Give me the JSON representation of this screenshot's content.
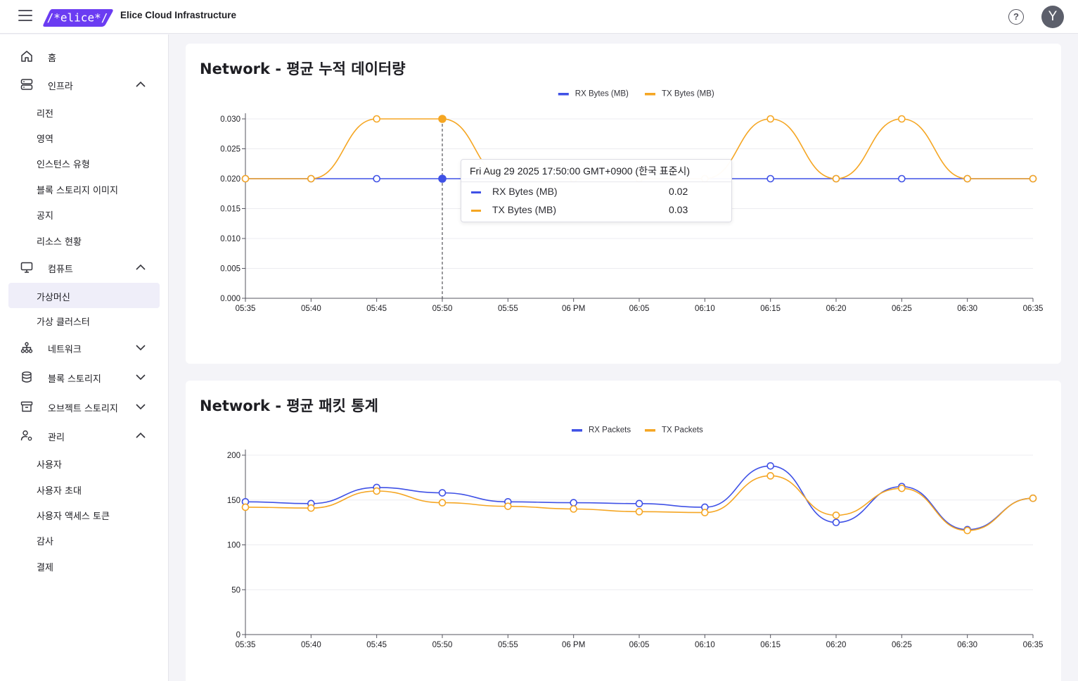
{
  "header": {
    "app_title": "Elice Cloud Infrastructure",
    "logo_text": "/*elice*/",
    "help_label": "?",
    "avatar_initial": "Y",
    "colors": {
      "logo_bg": "#6b3cf2",
      "avatar_bg": "#5c5f6b"
    }
  },
  "sidebar": {
    "items": [
      {
        "label": "홈",
        "icon": "home-icon",
        "expanded": null
      },
      {
        "label": "인프라",
        "icon": "server-icon",
        "expanded": true,
        "children": [
          "리전",
          "영역",
          "인스턴스 유형",
          "블록 스토리지 이미지",
          "공지",
          "리소스 현황"
        ]
      },
      {
        "label": "컴퓨트",
        "icon": "monitor-icon",
        "expanded": true,
        "children": [
          "가상머신",
          "가상 클러스터"
        ]
      },
      {
        "label": "네트워크",
        "icon": "network-icon",
        "expanded": false
      },
      {
        "label": "블록 스토리지",
        "icon": "database-icon",
        "expanded": false
      },
      {
        "label": "오브젝트 스토리지",
        "icon": "archive-icon",
        "expanded": false
      },
      {
        "label": "관리",
        "icon": "user-settings-icon",
        "expanded": true,
        "children": [
          "사용자",
          "사용자 초대",
          "사용자 액세스 토큰",
          "감사",
          "결제"
        ]
      }
    ],
    "active_item": "가상머신",
    "colors": {
      "active_bg": "#efeef9"
    }
  },
  "cards": [
    {
      "title": "Network - 평균 누적 데이터량"
    },
    {
      "title": "Network - 평균 패킷 통계"
    }
  ],
  "tooltip": {
    "time": "Fri Aug 29 2025 17:50:00 GMT+0900 (한국 표준시)",
    "rows": [
      {
        "name": "RX Bytes (MB)",
        "value": "0.02",
        "color": "#3f51e6"
      },
      {
        "name": "TX Bytes (MB)",
        "value": "0.03",
        "color": "#f5a623"
      }
    ]
  },
  "chart_data": [
    {
      "type": "line",
      "title": "Network - 평균 누적 데이터량",
      "x": [
        "05:35",
        "05:40",
        "05:45",
        "05:50",
        "05:55",
        "06 PM",
        "06:05",
        "06:10",
        "06:15",
        "06:20",
        "06:25",
        "06:30",
        "06:35"
      ],
      "series": [
        {
          "name": "RX Bytes (MB)",
          "color": "#3f51e6",
          "values": [
            0.02,
            0.02,
            0.02,
            0.02,
            0.02,
            0.02,
            0.02,
            0.02,
            0.02,
            0.02,
            0.02,
            0.02,
            0.02
          ]
        },
        {
          "name": "TX Bytes (MB)",
          "color": "#f5a623",
          "values": [
            0.02,
            0.02,
            0.03,
            0.03,
            0.02,
            0.02,
            0.02,
            0.02,
            0.03,
            0.02,
            0.03,
            0.02,
            0.02
          ]
        }
      ],
      "ylim": [
        0,
        0.03
      ],
      "yticks": [
        "0.000",
        "0.005",
        "0.010",
        "0.015",
        "0.020",
        "0.025",
        "0.030"
      ],
      "grid": true,
      "legend": "top-center",
      "highlight_index": 3
    },
    {
      "type": "line",
      "title": "Network - 평균 패킷 통계",
      "x": [
        "05:35",
        "05:40",
        "05:45",
        "05:50",
        "05:55",
        "06 PM",
        "06:05",
        "06:10",
        "06:15",
        "06:20",
        "06:25",
        "06:30",
        "06:35"
      ],
      "series": [
        {
          "name": "RX Packets",
          "color": "#3f51e6",
          "values": [
            148,
            146,
            164,
            158,
            148,
            147,
            146,
            142,
            188,
            125,
            165,
            117,
            152
          ]
        },
        {
          "name": "TX Packets",
          "color": "#f5a623",
          "values": [
            142,
            141,
            160,
            147,
            143,
            140,
            137,
            136,
            177,
            133,
            163,
            116,
            152
          ]
        }
      ],
      "ylim": [
        0,
        200
      ],
      "yticks": [
        "0",
        "50",
        "100",
        "150",
        "200"
      ],
      "grid": true,
      "legend": "top-center"
    }
  ]
}
